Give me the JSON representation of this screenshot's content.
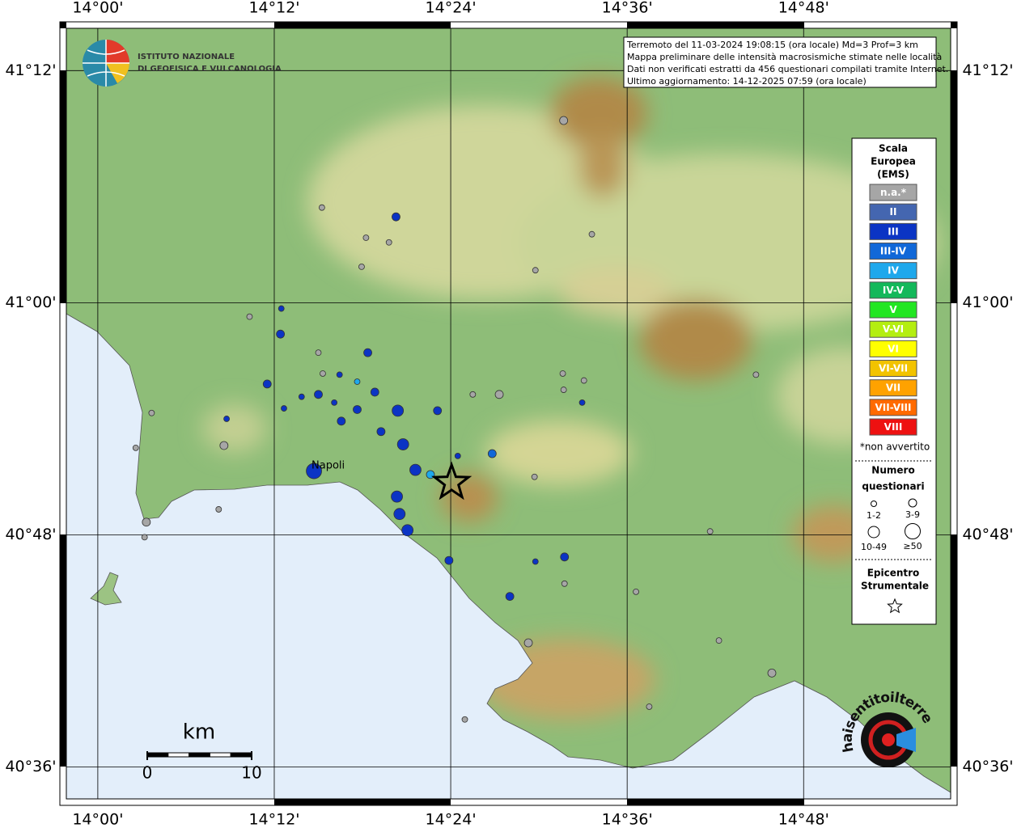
{
  "info": [
    "Terremoto del 11-03-2024 19:08:15 (ora locale) Md=3 Prof=3 km",
    "Mappa preliminare delle intensità macrosismiche stimate nelle località",
    "Dati non verificati estratti da 456 questionari compilati tramite Internet.",
    "Ultimo aggiornamento: 14-12-2025 07:59 (ora locale)"
  ],
  "logo": [
    "ISTITUTO NAZIONALE",
    "DI GEOFISICA E VULCANOLOGIA"
  ],
  "lonlim": [
    13.957,
    14.974
  ],
  "latlim": [
    40.567,
    41.242
  ],
  "lon_ticks": [
    {
      "value": 14.0,
      "label": "14°00'"
    },
    {
      "value": 14.2,
      "label": "14°12'"
    },
    {
      "value": 14.4,
      "label": "14°24'"
    },
    {
      "value": 14.6,
      "label": "14°36'"
    },
    {
      "value": 14.8,
      "label": "14°48'"
    }
  ],
  "lat_ticks": [
    {
      "value": 41.2,
      "label": "41°12'"
    },
    {
      "value": 41.0,
      "label": "41°00'"
    },
    {
      "value": 40.8,
      "label": "40°48'"
    },
    {
      "value": 40.6,
      "label": "40°36'"
    }
  ],
  "legend": {
    "title": [
      "Scala",
      "Europea",
      "(EMS)"
    ],
    "classes": [
      {
        "label": "n.a.*",
        "color": "#a6a6a6"
      },
      {
        "label": "II",
        "color": "#4466b0"
      },
      {
        "label": "III",
        "color": "#0b34c4"
      },
      {
        "label": "III-IV",
        "color": "#1168d8"
      },
      {
        "label": "IV",
        "color": "#1ea8ec"
      },
      {
        "label": "IV-V",
        "color": "#13b85a"
      },
      {
        "label": "V",
        "color": "#22e622"
      },
      {
        "label": "V-VI",
        "color": "#b4ee10"
      },
      {
        "label": "VI",
        "color": "#ffff00"
      },
      {
        "label": "VI-VII",
        "color": "#f2c300"
      },
      {
        "label": "VII",
        "color": "#ffa200"
      },
      {
        "label": "VII-VIII",
        "color": "#ff6a00"
      },
      {
        "label": "VIII",
        "color": "#ee1111"
      }
    ],
    "note": "*non avvertito",
    "size_title": [
      "Numero",
      "questionari"
    ],
    "sizes": [
      "1-2",
      "3-9",
      "10-49",
      "≥50"
    ],
    "epicenter_title": [
      "Epicentro",
      "Strumentale"
    ]
  },
  "city": "Napoli",
  "epicenter": {
    "lon": 14.401,
    "lat": 40.845
  },
  "scale_bar": {
    "unit": "km",
    "ticks": [
      0,
      10
    ]
  },
  "watermark": "haisentitoilterremoto.it",
  "points": [
    {
      "lon": 14.528,
      "lat": 41.157,
      "class": 0,
      "n": 1
    },
    {
      "lon": 14.254,
      "lat": 41.082,
      "class": 0,
      "n": 0
    },
    {
      "lon": 14.338,
      "lat": 41.074,
      "class": 2,
      "n": 1
    },
    {
      "lon": 14.304,
      "lat": 41.056,
      "class": 0,
      "n": 0
    },
    {
      "lon": 14.33,
      "lat": 41.052,
      "class": 0,
      "n": 0
    },
    {
      "lon": 14.56,
      "lat": 41.059,
      "class": 0,
      "n": 0
    },
    {
      "lon": 14.299,
      "lat": 41.031,
      "class": 0,
      "n": 0
    },
    {
      "lon": 14.496,
      "lat": 41.028,
      "class": 0,
      "n": 0
    },
    {
      "lon": 14.208,
      "lat": 40.995,
      "class": 2,
      "n": 0
    },
    {
      "lon": 14.172,
      "lat": 40.988,
      "class": 0,
      "n": 0
    },
    {
      "lon": 14.207,
      "lat": 40.973,
      "class": 2,
      "n": 1
    },
    {
      "lon": 14.25,
      "lat": 40.957,
      "class": 0,
      "n": 0
    },
    {
      "lon": 14.306,
      "lat": 40.957,
      "class": 2,
      "n": 1
    },
    {
      "lon": 14.255,
      "lat": 40.939,
      "class": 0,
      "n": 0
    },
    {
      "lon": 14.274,
      "lat": 40.938,
      "class": 2,
      "n": 0
    },
    {
      "lon": 14.294,
      "lat": 40.932,
      "class": 4,
      "n": 0
    },
    {
      "lon": 14.527,
      "lat": 40.939,
      "class": 0,
      "n": 0
    },
    {
      "lon": 14.551,
      "lat": 40.933,
      "class": 0,
      "n": 0
    },
    {
      "lon": 14.746,
      "lat": 40.938,
      "class": 0,
      "n": 0
    },
    {
      "lon": 14.192,
      "lat": 40.93,
      "class": 2,
      "n": 1
    },
    {
      "lon": 14.314,
      "lat": 40.923,
      "class": 2,
      "n": 1
    },
    {
      "lon": 14.25,
      "lat": 40.921,
      "class": 2,
      "n": 1
    },
    {
      "lon": 14.231,
      "lat": 40.919,
      "class": 2,
      "n": 0
    },
    {
      "lon": 14.268,
      "lat": 40.914,
      "class": 2,
      "n": 0
    },
    {
      "lon": 14.425,
      "lat": 40.921,
      "class": 0,
      "n": 0
    },
    {
      "lon": 14.455,
      "lat": 40.921,
      "class": 0,
      "n": 1
    },
    {
      "lon": 14.528,
      "lat": 40.925,
      "class": 0,
      "n": 0
    },
    {
      "lon": 14.549,
      "lat": 40.914,
      "class": 2,
      "n": 0
    },
    {
      "lon": 14.061,
      "lat": 40.905,
      "class": 0,
      "n": 0
    },
    {
      "lon": 14.211,
      "lat": 40.909,
      "class": 2,
      "n": 0
    },
    {
      "lon": 14.294,
      "lat": 40.908,
      "class": 2,
      "n": 1
    },
    {
      "lon": 14.34,
      "lat": 40.907,
      "class": 2,
      "n": 2
    },
    {
      "lon": 14.385,
      "lat": 40.907,
      "class": 2,
      "n": 1
    },
    {
      "lon": 14.146,
      "lat": 40.9,
      "class": 2,
      "n": 0
    },
    {
      "lon": 14.276,
      "lat": 40.898,
      "class": 2,
      "n": 1
    },
    {
      "lon": 14.321,
      "lat": 40.889,
      "class": 2,
      "n": 1
    },
    {
      "lon": 14.346,
      "lat": 40.878,
      "class": 2,
      "n": 2
    },
    {
      "lon": 14.143,
      "lat": 40.877,
      "class": 0,
      "n": 1
    },
    {
      "lon": 14.043,
      "lat": 40.875,
      "class": 0,
      "n": 0
    },
    {
      "lon": 14.408,
      "lat": 40.868,
      "class": 2,
      "n": 0
    },
    {
      "lon": 14.447,
      "lat": 40.87,
      "class": 3,
      "n": 1
    },
    {
      "lon": 14.245,
      "lat": 40.855,
      "class": 2,
      "n": 3
    },
    {
      "lon": 14.36,
      "lat": 40.856,
      "class": 2,
      "n": 2
    },
    {
      "lon": 14.377,
      "lat": 40.852,
      "class": 4,
      "n": 1
    },
    {
      "lon": 14.495,
      "lat": 40.85,
      "class": 0,
      "n": 0
    },
    {
      "lon": 14.339,
      "lat": 40.833,
      "class": 2,
      "n": 2
    },
    {
      "lon": 14.137,
      "lat": 40.822,
      "class": 0,
      "n": 0
    },
    {
      "lon": 14.342,
      "lat": 40.818,
      "class": 2,
      "n": 2
    },
    {
      "lon": 14.055,
      "lat": 40.811,
      "class": 0,
      "n": 1
    },
    {
      "lon": 14.351,
      "lat": 40.804,
      "class": 2,
      "n": 2
    },
    {
      "lon": 14.053,
      "lat": 40.798,
      "class": 0,
      "n": 0
    },
    {
      "lon": 14.694,
      "lat": 40.803,
      "class": 0,
      "n": 0
    },
    {
      "lon": 14.398,
      "lat": 40.778,
      "class": 2,
      "n": 1
    },
    {
      "lon": 14.496,
      "lat": 40.777,
      "class": 2,
      "n": 0
    },
    {
      "lon": 14.529,
      "lat": 40.781,
      "class": 2,
      "n": 1
    },
    {
      "lon": 14.529,
      "lat": 40.758,
      "class": 0,
      "n": 0
    },
    {
      "lon": 14.61,
      "lat": 40.751,
      "class": 0,
      "n": 0
    },
    {
      "lon": 14.467,
      "lat": 40.747,
      "class": 2,
      "n": 1
    },
    {
      "lon": 14.488,
      "lat": 40.707,
      "class": 0,
      "n": 1
    },
    {
      "lon": 14.704,
      "lat": 40.709,
      "class": 0,
      "n": 0
    },
    {
      "lon": 14.764,
      "lat": 40.681,
      "class": 0,
      "n": 1
    },
    {
      "lon": 14.625,
      "lat": 40.652,
      "class": 0,
      "n": 0
    },
    {
      "lon": 14.416,
      "lat": 40.641,
      "class": 0,
      "n": 0
    }
  ]
}
